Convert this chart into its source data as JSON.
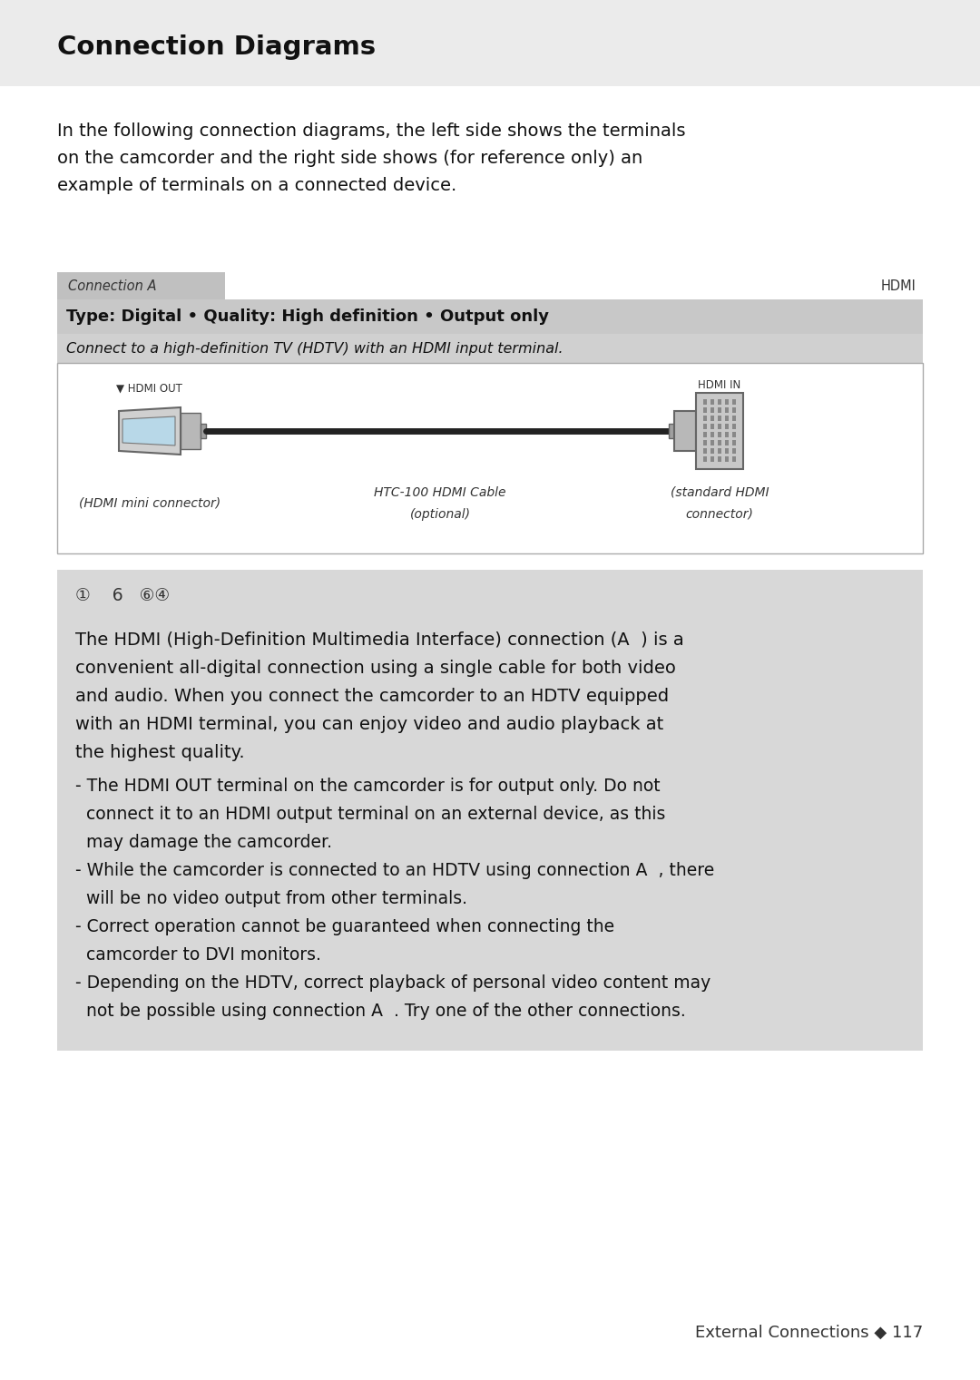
{
  "title": "Connection Diagrams",
  "bg_color": "#ffffff",
  "intro_text": "In the following connection diagrams, the left side shows the terminals\non the camcorder and the right side shows (for reference only) an\nexample of terminals on a connected device.",
  "connection_label": "Connection A",
  "hdmi_label": "HDMI",
  "type_line": "Type: Digital • Quality: High definition • Output only",
  "connect_line": "Connect to a high-definition TV (HDTV) with an HDMI input terminal.",
  "hdmi_out_label": "▼ HDMI OUT",
  "hdmi_in_label": "HDMI IN",
  "left_connector_label": "(HDMI mini connector)",
  "right_connector_label_1": "(standard HDMI",
  "right_connector_label_2": "connector)",
  "cable_label_1": "HTC-100 HDMI Cable",
  "cable_label_2": "(optional)",
  "note_icons": "①    6   ⑥④",
  "main_lines": [
    "The HDMI (High-Definition Multimedia Interface) connection (A  ) is a",
    "convenient all‑digital connection using a single cable for both video",
    "and audio. When you connect the camcorder to an HDTV equipped",
    "with an HDMI terminal, you can enjoy video and audio playback at",
    "the highest quality."
  ],
  "bullet_lines": [
    [
      "- The HDMI OUT terminal on the camcorder is for output only. Do not"
    ],
    [
      "  connect it to an HDMI output terminal on an external device, as this"
    ],
    [
      "  may damage the camcorder."
    ],
    [
      "- While the camcorder is connected to an HDTV using connection A  , there"
    ],
    [
      "  will be no video output from other terminals."
    ],
    [
      "- Correct operation cannot be guaranteed when connecting the"
    ],
    [
      "  camcorder to DVI monitors."
    ],
    [
      "- Depending on the HDTV, correct playback of personal video content may"
    ],
    [
      "  not be possible using connection A  . Try one of the other connections."
    ]
  ],
  "footer": "External Connections ◆ 117",
  "tab_bg": "#c0c0c0",
  "header_row_bg": "#c8c8c8",
  "sub_row_bg": "#d0d0d0",
  "note_bg": "#d8d8d8",
  "title_bar_bg": "#ebebeb"
}
